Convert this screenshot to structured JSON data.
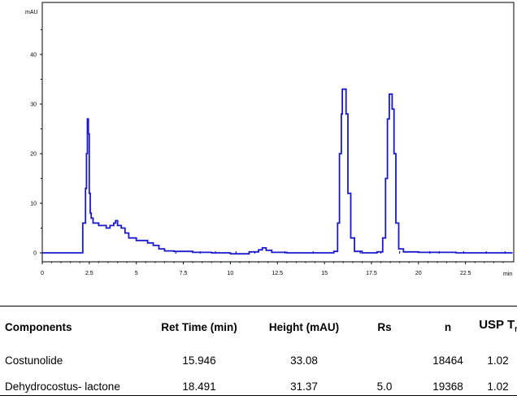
{
  "chart_data": {
    "type": "line",
    "title": "",
    "xlabel": "min",
    "ylabel": "mAU",
    "xlim": [
      0,
      25
    ],
    "ylim": [
      -2,
      49
    ],
    "x_ticks": [
      0,
      2.5,
      5,
      7.5,
      10,
      12.5,
      15,
      17.5,
      20,
      22.5
    ],
    "x_tick_labels": [
      "0",
      "2.5",
      "5",
      "7.5",
      "10",
      "12.5",
      "15",
      "17.5",
      "20",
      "22.5"
    ],
    "y_ticks": [
      0,
      10,
      20,
      30,
      40
    ],
    "y_tick_labels": [
      "0",
      "10",
      "20",
      "30",
      "40"
    ],
    "series": [
      {
        "name": "chromatogram",
        "color": "#1a1acc",
        "x": [
          0,
          2.1,
          2.15,
          2.25,
          2.3,
          2.35,
          2.4,
          2.45,
          2.5,
          2.55,
          2.6,
          2.65,
          2.7,
          2.8,
          2.9,
          3.0,
          3.2,
          3.4,
          3.6,
          3.8,
          3.9,
          4.0,
          4.2,
          4.4,
          4.6,
          4.8,
          5.0,
          5.3,
          5.6,
          5.9,
          6.2,
          6.5,
          7.0,
          8.0,
          9.0,
          10.0,
          11.0,
          11.5,
          11.7,
          11.9,
          12.2,
          13.0,
          15.0,
          15.5,
          15.7,
          15.8,
          15.9,
          15.95,
          16.05,
          16.15,
          16.25,
          16.4,
          16.6,
          17.0,
          17.8,
          18.1,
          18.25,
          18.35,
          18.45,
          18.5,
          18.6,
          18.7,
          18.8,
          18.95,
          19.2,
          20.0,
          22.0,
          25.0
        ],
        "values": [
          0,
          0,
          6,
          6,
          13,
          20,
          27,
          24,
          12,
          8,
          7,
          7,
          6,
          6,
          6,
          5.5,
          5.5,
          5,
          5.5,
          6,
          6.5,
          5.5,
          5,
          4,
          3,
          3,
          2.5,
          2.5,
          2,
          1.5,
          0.8,
          0.4,
          0.3,
          0.1,
          0,
          -0.2,
          0.2,
          0.6,
          1,
          0.5,
          0.1,
          0,
          0,
          0.3,
          6,
          20,
          28,
          33,
          33,
          28,
          12,
          3,
          0.3,
          0,
          0.2,
          3,
          15,
          27,
          32,
          32,
          29,
          20,
          6,
          0.8,
          0.2,
          0.1,
          0,
          0
        ]
      }
    ]
  },
  "table": {
    "headers": [
      "Components",
      "Ret Time (min)",
      "Height (mAU)",
      "Rs",
      "n",
      "USP T"
    ],
    "usp_subscript": "f",
    "rows": [
      {
        "component": "Costunolide",
        "ret_time": "15.946",
        "height": "33.08",
        "rs": "",
        "n": "18464",
        "usp_t": "1.02"
      },
      {
        "component": "Dehydrocostus- lactone",
        "ret_time": "18.491",
        "height": "31.37",
        "rs": "5.0",
        "n": "19368",
        "usp_t": "1.02"
      }
    ]
  }
}
